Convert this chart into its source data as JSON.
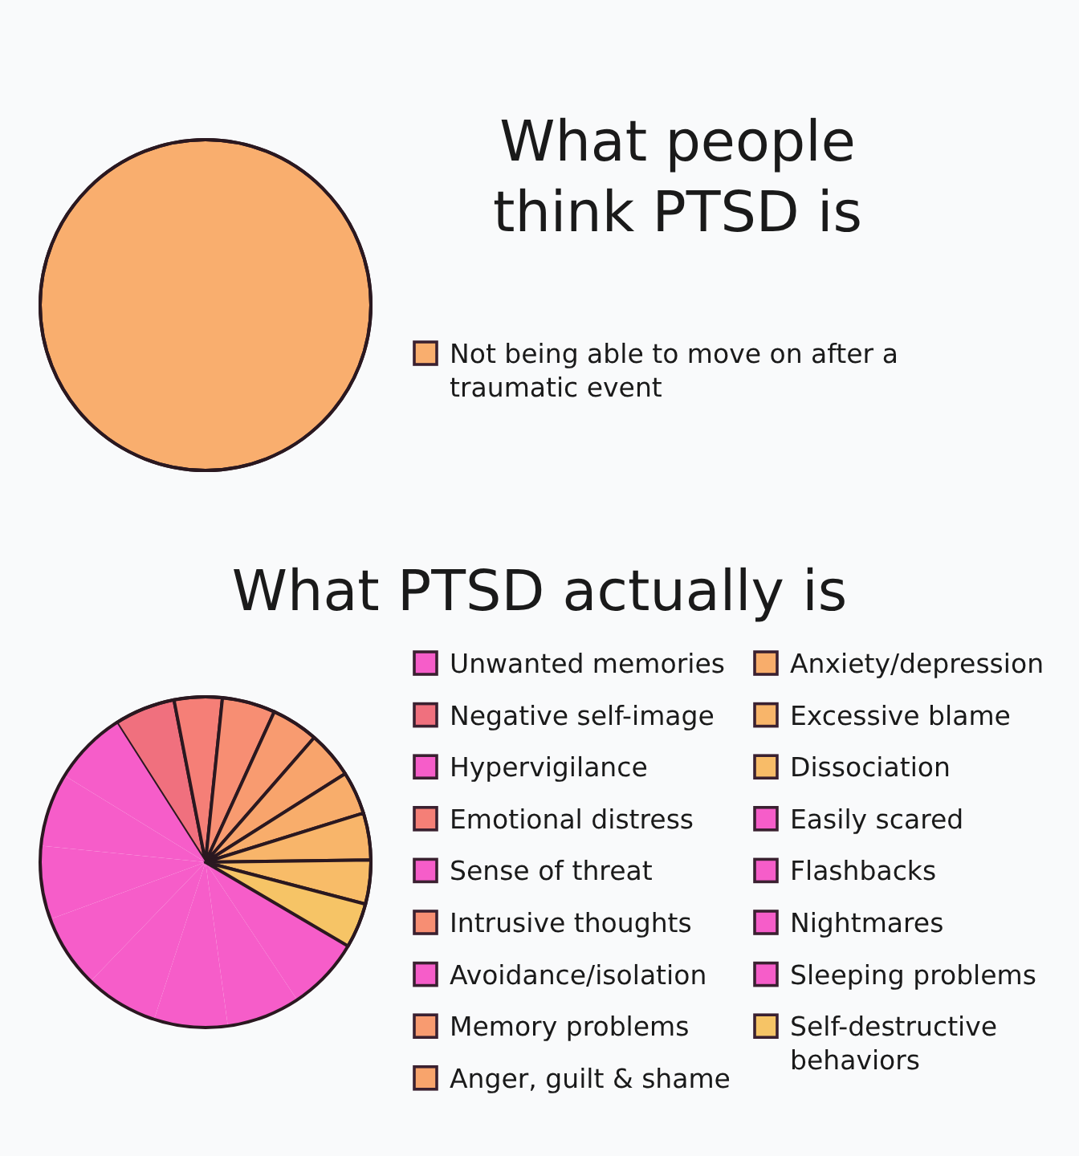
{
  "chart_data": [
    {
      "type": "pie",
      "title": "What people think PTSD is",
      "categories": [
        "Not being able to move on after a traumatic event"
      ],
      "values": [
        100
      ],
      "colors": [
        "#f9ae6e"
      ],
      "legend": "right"
    },
    {
      "type": "pie",
      "title": "What PTSD actually is",
      "categories": [
        "Unwanted memories",
        "Negative self-image",
        "Hypervigilance",
        "Emotional distress",
        "Sense of threat",
        "Intrusive thoughts",
        "Avoidance/isolation",
        "Memory problems",
        "Anger, guilt & shame",
        "Anxiety/depression",
        "Excessive blame",
        "Dissociation",
        "Easily scared",
        "Flashbacks",
        "Nightmares",
        "Sleeping problems",
        "Self-destructive behaviors"
      ],
      "values": [
        7.2,
        6.0,
        7.2,
        4.7,
        7.2,
        5.2,
        7.2,
        4.6,
        4.6,
        4.2,
        4.6,
        4.3,
        7.2,
        7.2,
        7.2,
        7.2,
        4.4
      ],
      "colors": [
        "#f65dc9",
        "#f0707e",
        "#f65dc9",
        "#f57f77",
        "#f65dc9",
        "#f78e73",
        "#f65dc9",
        "#f89b70",
        "#f8a46c",
        "#f8ad6b",
        "#f8b56a",
        "#f8bc68",
        "#f65dc9",
        "#f65dc9",
        "#f65dc9",
        "#f65dc9",
        "#f6c466"
      ],
      "legend": "right"
    }
  ]
}
